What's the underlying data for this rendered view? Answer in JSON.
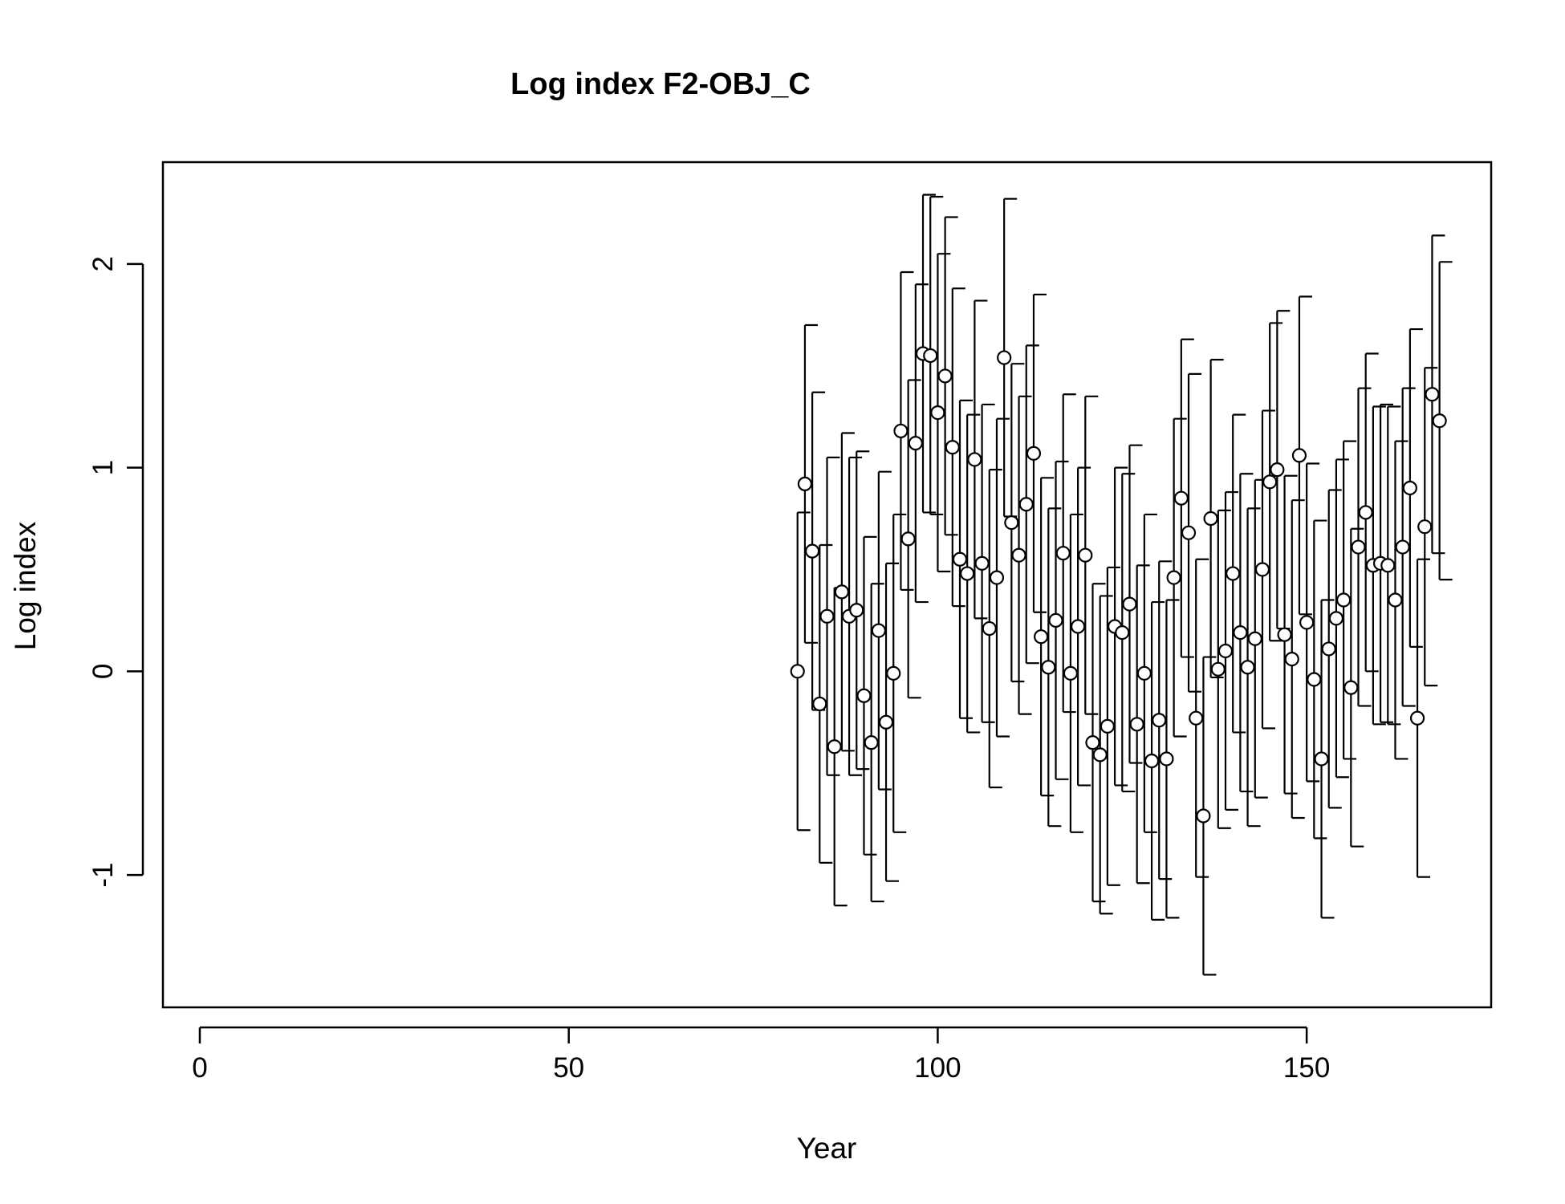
{
  "chart_data": {
    "type": "scatter",
    "title": "Log index F2-OBJ_C",
    "xlabel": "Year",
    "ylabel": "Log index",
    "xlim": [
      -5,
      175
    ],
    "ylim": [
      -1.65,
      2.5
    ],
    "x_ticks": [
      0,
      50,
      100,
      150
    ],
    "x_tick_labels": [
      "0",
      "50",
      "100",
      "150"
    ],
    "y_ticks": [
      -1,
      0,
      1,
      2
    ],
    "y_tick_labels": [
      "-1",
      "0",
      "1",
      "2"
    ],
    "grid": false,
    "legend": "none",
    "point_style": "open-circle",
    "x": [
      81,
      82,
      83,
      84,
      85,
      86,
      87,
      88,
      89,
      90,
      91,
      92,
      93,
      94,
      95,
      96,
      97,
      98,
      99,
      100,
      101,
      102,
      103,
      104,
      105,
      106,
      107,
      108,
      109,
      110,
      111,
      112,
      113,
      114,
      115,
      116,
      117,
      118,
      119,
      120,
      121,
      122,
      123,
      124,
      125,
      126,
      127,
      128,
      129,
      130,
      131,
      132,
      133,
      134,
      135,
      136,
      137,
      138,
      139,
      140,
      141,
      142,
      143,
      144,
      145,
      146,
      147,
      148,
      149,
      150,
      151,
      152,
      153,
      154,
      155,
      156,
      157,
      158,
      159,
      160,
      161,
      162,
      163,
      164,
      165,
      166,
      167,
      168
    ],
    "y": [
      0.0,
      0.92,
      0.59,
      -0.16,
      0.27,
      -0.37,
      0.39,
      0.27,
      0.3,
      -0.12,
      -0.35,
      0.2,
      -0.25,
      -0.01,
      1.18,
      0.65,
      1.12,
      1.56,
      1.55,
      1.27,
      1.45,
      1.1,
      0.55,
      0.48,
      1.04,
      0.53,
      0.21,
      0.46,
      1.54,
      0.73,
      0.57,
      0.82,
      1.07,
      0.17,
      0.02,
      0.25,
      0.58,
      -0.01,
      0.22,
      0.57,
      -0.35,
      -0.41,
      -0.27,
      0.22,
      0.19,
      0.33,
      -0.26,
      -0.01,
      -0.44,
      -0.24,
      -0.43,
      0.46,
      0.85,
      0.68,
      -0.23,
      -0.71,
      0.75,
      0.01,
      0.1,
      0.48,
      0.19,
      0.02,
      0.16,
      0.5,
      0.93,
      0.99,
      0.18,
      0.06,
      1.06,
      0.24,
      -0.04,
      -0.43,
      0.11,
      0.26,
      0.35,
      -0.08,
      0.61,
      0.78,
      0.52,
      0.53,
      0.52,
      0.35,
      0.61,
      0.9,
      -0.23,
      0.71,
      1.36,
      1.23
    ],
    "error_half_width": 0.78
  }
}
